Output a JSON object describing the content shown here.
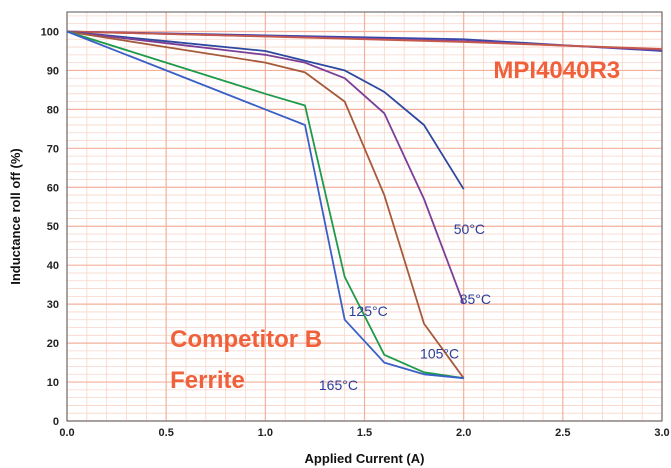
{
  "chart_data": {
    "type": "line",
    "xlabel": "Applied Current (A)",
    "ylabel": "Inductance roll off (%)",
    "xlim": [
      0,
      3
    ],
    "ylim": [
      0,
      105
    ],
    "x_ticks": [
      "0.0",
      "0.5",
      "1.0",
      "1.5",
      "2.0",
      "2.5",
      "3.0"
    ],
    "y_ticks": [
      "0",
      "10",
      "20",
      "30",
      "40",
      "50",
      "60",
      "70",
      "80",
      "90",
      "100"
    ],
    "x_minor_step": 0.1,
    "y_minor_step": 2,
    "grid": true,
    "colors": {
      "grid_major": "#f4b09c",
      "grid_minor": "#f9d5c8",
      "label_blue": "#2a3f9c",
      "label_orange": "#f0603a"
    },
    "series": [
      {
        "name": "MPI4040R3",
        "color": "#3848a8",
        "x": [
          0,
          1.0,
          2.0,
          3.0
        ],
        "y": [
          100,
          99,
          98,
          95
        ]
      },
      {
        "name": "MPI4040R3",
        "color": "#8a3f9a",
        "x": [
          0,
          1.0,
          2.0,
          3.0
        ],
        "y": [
          100,
          98.8,
          97.5,
          95.3
        ]
      },
      {
        "name": "MPI4040R3",
        "color": "#c55a4a",
        "x": [
          0,
          1.0,
          2.0,
          3.0
        ],
        "y": [
          100,
          98.7,
          97.3,
          95.5
        ]
      },
      {
        "name": "50°C",
        "color": "#2e4aa0",
        "x": [
          0,
          0.5,
          1.0,
          1.2,
          1.4,
          1.6,
          1.8,
          2.0
        ],
        "y": [
          100,
          97.5,
          95,
          92.5,
          90,
          84.5,
          76,
          59.5
        ]
      },
      {
        "name": "85°C",
        "color": "#7b3f98",
        "x": [
          0,
          0.5,
          1.0,
          1.2,
          1.4,
          1.6,
          1.8,
          2.0
        ],
        "y": [
          100,
          97,
          94,
          92,
          88,
          79,
          57,
          30
        ]
      },
      {
        "name": "105°C",
        "color": "#a55a3c",
        "x": [
          0,
          0.5,
          1.0,
          1.2,
          1.4,
          1.6,
          1.8,
          2.0
        ],
        "y": [
          100,
          96,
          92,
          89.5,
          82,
          58,
          25,
          11
        ]
      },
      {
        "name": "125°C",
        "color": "#1e9a4a",
        "x": [
          0,
          0.5,
          1.0,
          1.2,
          1.4,
          1.6,
          1.8,
          2.0
        ],
        "y": [
          100,
          92,
          84,
          81,
          37,
          17,
          12.5,
          11
        ]
      },
      {
        "name": "165°C",
        "color": "#3a60c8",
        "x": [
          0,
          0.5,
          1.0,
          1.2,
          1.4,
          1.6,
          1.8,
          2.0
        ],
        "y": [
          100,
          90,
          80,
          76,
          26,
          15,
          12,
          11
        ]
      }
    ],
    "annotations": [
      {
        "text": "MPI4040R3",
        "x": 2.15,
        "y": 88,
        "style": "big"
      },
      {
        "text": "Competitor B",
        "x": 0.52,
        "y": 19,
        "style": "big"
      },
      {
        "text": "Ferrite",
        "x": 0.52,
        "y": 8.5,
        "style": "big"
      },
      {
        "text": "50°C",
        "x": 1.95,
        "y": 48,
        "style": "series"
      },
      {
        "text": "85°C",
        "x": 1.98,
        "y": 30,
        "style": "series"
      },
      {
        "text": "125°C",
        "x": 1.42,
        "y": 27,
        "style": "series"
      },
      {
        "text": "105°C",
        "x": 1.78,
        "y": 16,
        "style": "series"
      },
      {
        "text": "165°C",
        "x": 1.27,
        "y": 8,
        "style": "series"
      }
    ]
  }
}
